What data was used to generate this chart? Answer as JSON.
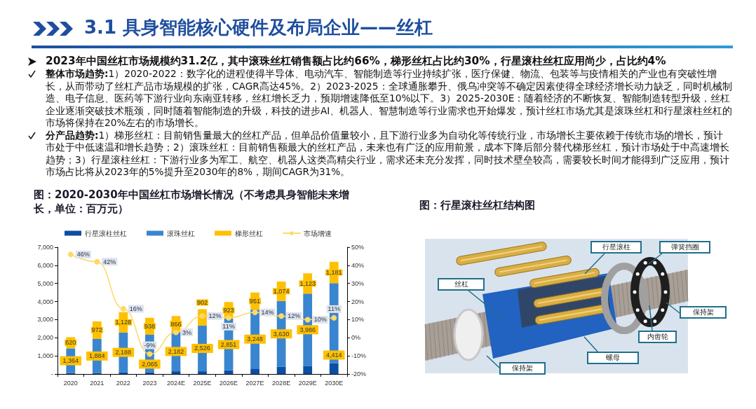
{
  "chart_data": [
    {
      "type": "other",
      "title": "3.1 具身智能核心硬件及布局企业——丝杠",
      "annotations": [
        "2023年中国丝杠市场规模约31.2亿，其中滚珠丝杠销售额占比约66%，梯形丝杠占比约30%，行星滚柱丝杠应用尚少，占比约4%",
        "整体市场趋势:1）2020-2022：数字化的进程使得半导体、电动汽车、智能制造等行业持续扩张，医疗保健、物流、包装等与疫情相关的产业也有突破性增长，从而带动了丝杠产品市场规模的扩张，CAGR高达45%。2）2023-2025：全球通胀攀升、俄乌冲突等不确定因素使得全球经济增长动力缺乏，同时机械制造、电子信息、医药等下游行业向东南亚转移，丝杠增长乏力，预期增速降低至10%以下。3）2025-2030E：随着经济的不断恢复、智能制造转型升级，丝杠企业逐渐突破技术瓶颈，同时随着智能制造的升级，科技的进步AI、机器人、智慧制造等行业需求也开始爆发，预计丝杠市场尤其是滚珠丝杠和行星滚柱丝杠的市场将保持在20%左右的市场增长。",
        "分产品趋势:1）梯形丝杠：目前销售量最大的丝杠产品，但单品价值量较小，且下游行业多为自动化等传统行业，市场增长主要依赖于传统市场的增长，预计市处于中低速温和增长趋势；2）滚珠丝杠：目前销售额最大的丝杠产品，未来也有广泛的应用前景，成本下降后部分替代梯形丝杠，预计市场处于中高速增长趋势；3）行星滚柱丝杠：下游行业多为军工、航空、机器人这类高精尖行业，需求还未充分发挥，同时技术壁垒较高，需要较长时间才能得到广泛应用，预计市场占比将从2023年的5%提升至2030年的8%，期间CAGR为31%。"
      ]
    },
    {
      "type": "bar",
      "title": "图：2020-2030年中国丝杠市场增长情况（不考虑具身智能未来增长，单位：百万元）",
      "categories": [
        "2020",
        "2021",
        "2022",
        "2023",
        "2024E",
        "2025E",
        "2026E",
        "2027E",
        "2028E",
        "2029E",
        "2030E"
      ],
      "stacked": true,
      "series": [
        {
          "name": "行星滚柱丝杠",
          "color": "#0B4EA2",
          "values": [
            50,
            50,
            100,
            100,
            150,
            150,
            200,
            300,
            400,
            450,
            600
          ]
        },
        {
          "name": "滚珠丝杠",
          "color": "#3A85CF",
          "values": [
            1364,
            1884,
            2188,
            2065,
            2182,
            2526,
            2851,
            3248,
            3630,
            3986,
            4414
          ],
          "value_labels": [
            "1,364",
            "1,884",
            "2,188",
            "2,065",
            "2,182",
            "2,526",
            "2,851",
            "3,248",
            "3,630",
            "3,986",
            "4,414"
          ]
        },
        {
          "name": "梯形丝杠",
          "color": "#FFC000",
          "values": [
            620,
            972,
            1128,
            938,
            866,
            902,
            923,
            951,
            1074,
            1123,
            1181
          ],
          "value_labels": [
            "620",
            "972",
            "1,128",
            "938",
            "866",
            "902",
            "923",
            "951",
            "1,074",
            "1,123",
            "1,181"
          ]
        },
        {
          "name": "市场增速",
          "type": "line",
          "axis": "y2",
          "color": "#FFD966",
          "values": [
            46,
            42,
            16,
            -9,
            3,
            12,
            11,
            14,
            12,
            10,
            11
          ],
          "value_labels": [
            "46%",
            "42%",
            "16%",
            "-9%",
            "3%",
            "12%",
            "11%",
            "14%",
            "12%",
            "10%",
            "11%"
          ]
        }
      ],
      "ylim": [
        0,
        7000
      ],
      "yticks": [
        {
          "value": 0,
          "label": "-"
        },
        {
          "value": 1000,
          "label": "1,000"
        },
        {
          "value": 2000,
          "label": "2,000"
        },
        {
          "value": 3000,
          "label": "3,000"
        },
        {
          "value": 4000,
          "label": "4,000"
        },
        {
          "value": 5000,
          "label": "5,000"
        },
        {
          "value": 6000,
          "label": "6,000"
        },
        {
          "value": 7000,
          "label": "7,000"
        }
      ],
      "y2lim": [
        -20,
        50
      ],
      "y2ticks": [
        {
          "value": -20,
          "label": "-20%"
        },
        {
          "value": -10,
          "label": "-10%"
        },
        {
          "value": 0,
          "label": "0%"
        },
        {
          "value": 10,
          "label": "10%"
        },
        {
          "value": 20,
          "label": "20%"
        },
        {
          "value": 30,
          "label": "30%"
        },
        {
          "value": 40,
          "label": "40%"
        },
        {
          "value": 50,
          "label": "50%"
        }
      ],
      "legend": "top",
      "marker": "circle"
    },
    {
      "type": "other",
      "title": "图：行星滚柱丝杠结构图",
      "annotations": [
        "行星滚柱",
        "弹簧挡圈",
        "丝杠",
        "保持架",
        "内齿轮",
        "螺母",
        "保持架"
      ]
    }
  ]
}
